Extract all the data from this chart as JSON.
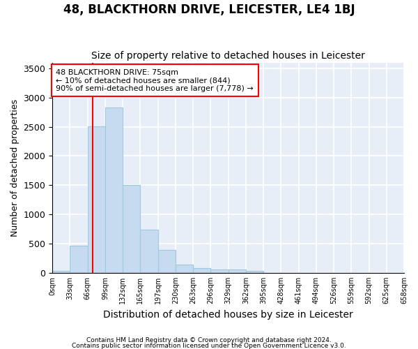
{
  "title": "48, BLACKTHORN DRIVE, LEICESTER, LE4 1BJ",
  "subtitle": "Size of property relative to detached houses in Leicester",
  "xlabel": "Distribution of detached houses by size in Leicester",
  "ylabel": "Number of detached properties",
  "footer_line1": "Contains HM Land Registry data © Crown copyright and database right 2024.",
  "footer_line2": "Contains public sector information licensed under the Open Government Licence v3.0.",
  "annotation_line1": "48 BLACKTHORN DRIVE: 75sqm",
  "annotation_line2": "← 10% of detached houses are smaller (844)",
  "annotation_line3": "90% of semi-detached houses are larger (7,778) →",
  "bar_values": [
    30,
    470,
    2510,
    2830,
    1510,
    740,
    390,
    140,
    80,
    55,
    55,
    30,
    0,
    0,
    0,
    0,
    0,
    0,
    0,
    0
  ],
  "bar_color": "#c6dbef",
  "bar_edge_color": "#9ecae1",
  "tick_labels": [
    "0sqm",
    "33sqm",
    "66sqm",
    "99sqm",
    "132sqm",
    "165sqm",
    "197sqm",
    "230sqm",
    "263sqm",
    "296sqm",
    "329sqm",
    "362sqm",
    "395sqm",
    "428sqm",
    "461sqm",
    "494sqm",
    "526sqm",
    "559sqm",
    "592sqm",
    "625sqm",
    "658sqm"
  ],
  "ylim": [
    0,
    3600
  ],
  "yticks": [
    0,
    500,
    1000,
    1500,
    2000,
    2500,
    3000,
    3500
  ],
  "background_color": "#ffffff",
  "plot_bg_color": "#e8eef8",
  "title_fontsize": 12,
  "subtitle_fontsize": 10,
  "ylabel_fontsize": 9,
  "xlabel_fontsize": 10
}
